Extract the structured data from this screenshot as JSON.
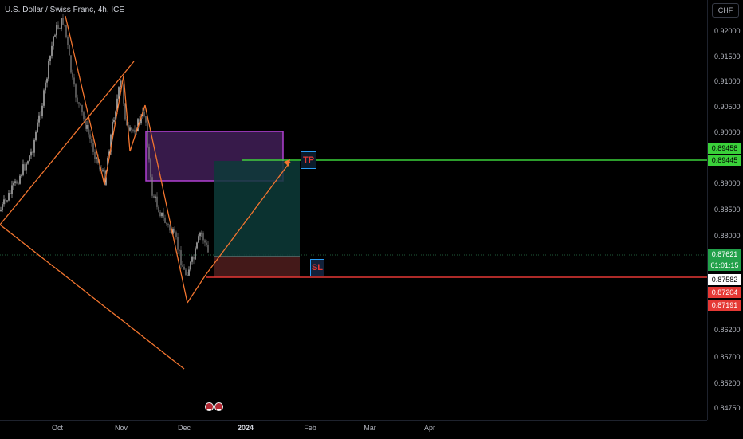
{
  "header": {
    "symbol_title": "U.S. Dollar / Swiss Franc, 4h, ICE"
  },
  "price_axis": {
    "currency_button": "CHF",
    "ticks": [
      "0.92000",
      "0.91500",
      "0.91000",
      "0.90500",
      "0.90000",
      "0.89000",
      "0.88500",
      "0.88000",
      "0.86200",
      "0.85700",
      "0.85200",
      "0.84750"
    ]
  },
  "price_labels": {
    "high_green": "0.89458",
    "tp_level": "0.89445",
    "current_price": "0.87621",
    "countdown": "01:01:15",
    "white_level": "0.87582",
    "red_level_1": "0.87204",
    "red_level_2": "0.87191"
  },
  "time_axis": {
    "ticks": [
      "Oct",
      "Nov",
      "Dec",
      "2024",
      "Feb",
      "Mar",
      "Apr"
    ]
  },
  "tools": {
    "tp_label": "TP",
    "sl_label": "SL"
  },
  "colors": {
    "background": "#000000",
    "candle_up": "#e6e6e6",
    "candle_down": "#8a8a8a",
    "trend_line": "#f2752f",
    "tp_line": "#3ad13a",
    "sl_line": "#e53935",
    "zone_fill": "#5a2a6e",
    "zone_border": "#b03fd1",
    "profit_zone": "#0f3a3a",
    "loss_zone": "#4a1e1e"
  }
}
